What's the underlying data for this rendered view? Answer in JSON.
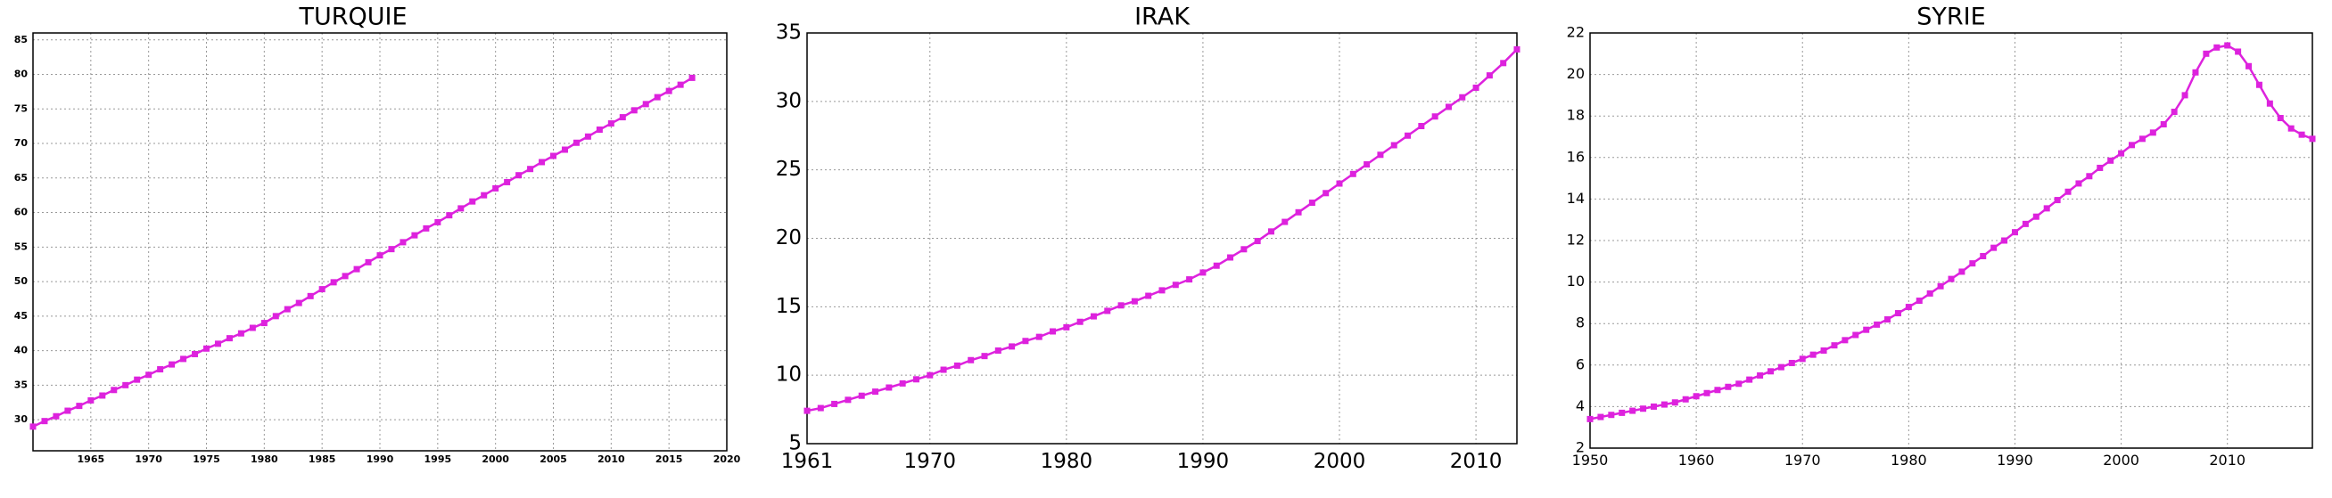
{
  "chart_data": [
    {
      "type": "line",
      "title": "TURQUIE",
      "x": [
        1960,
        1961,
        1962,
        1963,
        1964,
        1965,
        1966,
        1967,
        1968,
        1969,
        1970,
        1971,
        1972,
        1973,
        1974,
        1975,
        1976,
        1977,
        1978,
        1979,
        1980,
        1981,
        1982,
        1983,
        1984,
        1985,
        1986,
        1987,
        1988,
        1989,
        1990,
        1991,
        1992,
        1993,
        1994,
        1995,
        1996,
        1997,
        1998,
        1999,
        2000,
        2001,
        2002,
        2003,
        2004,
        2005,
        2006,
        2007,
        2008,
        2009,
        2010,
        2011,
        2012,
        2013,
        2014,
        2015,
        2016,
        2017
      ],
      "series": [
        {
          "color": "#dd22dd",
          "values": [
            29.0,
            29.8,
            30.5,
            31.3,
            32.0,
            32.8,
            33.5,
            34.3,
            35.0,
            35.8,
            36.5,
            37.3,
            38.0,
            38.8,
            39.5,
            40.3,
            41.0,
            41.8,
            42.5,
            43.3,
            44.0,
            45.0,
            46.0,
            46.9,
            47.9,
            48.9,
            49.9,
            50.8,
            51.8,
            52.8,
            53.8,
            54.7,
            55.7,
            56.7,
            57.7,
            58.6,
            59.6,
            60.6,
            61.6,
            62.5,
            63.5,
            64.4,
            65.4,
            66.3,
            67.3,
            68.2,
            69.1,
            70.1,
            71.0,
            72.0,
            72.9,
            73.8,
            74.8,
            75.7,
            76.7,
            77.6,
            78.5,
            79.5
          ]
        }
      ],
      "xlim": [
        1960,
        2020
      ],
      "xticks": [
        1965,
        1970,
        1975,
        1980,
        1985,
        1990,
        1995,
        2000,
        2005,
        2010,
        2015,
        2020
      ],
      "ylim": [
        25.5,
        86
      ],
      "yticks": [
        30,
        35,
        40,
        45,
        50,
        55,
        60,
        65,
        70,
        75,
        80,
        85
      ],
      "grid": true
    },
    {
      "type": "line",
      "title": "IRAK",
      "x": [
        1961,
        1962,
        1963,
        1964,
        1965,
        1966,
        1967,
        1968,
        1969,
        1970,
        1971,
        1972,
        1973,
        1974,
        1975,
        1976,
        1977,
        1978,
        1979,
        1980,
        1981,
        1982,
        1983,
        1984,
        1985,
        1986,
        1987,
        1988,
        1989,
        1990,
        1991,
        1992,
        1993,
        1994,
        1995,
        1996,
        1997,
        1998,
        1999,
        2000,
        2001,
        2002,
        2003,
        2004,
        2005,
        2006,
        2007,
        2008,
        2009,
        2010,
        2011,
        2012,
        2013
      ],
      "series": [
        {
          "color": "#dd22dd",
          "values": [
            7.4,
            7.6,
            7.9,
            8.2,
            8.5,
            8.8,
            9.1,
            9.4,
            9.7,
            10.0,
            10.4,
            10.7,
            11.1,
            11.4,
            11.8,
            12.1,
            12.5,
            12.8,
            13.2,
            13.5,
            13.9,
            14.3,
            14.7,
            15.1,
            15.4,
            15.8,
            16.2,
            16.6,
            17.0,
            17.5,
            18.0,
            18.6,
            19.2,
            19.8,
            20.5,
            21.2,
            21.9,
            22.6,
            23.3,
            24.0,
            24.7,
            25.4,
            26.1,
            26.8,
            27.5,
            28.2,
            28.9,
            29.6,
            30.3,
            31.0,
            31.9,
            32.8,
            33.8
          ]
        }
      ],
      "xlim": [
        1961,
        2013
      ],
      "xticks": [
        1961,
        1970,
        1980,
        1990,
        2000,
        2010
      ],
      "ylim": [
        5,
        35
      ],
      "yticks": [
        5,
        10,
        15,
        20,
        25,
        30,
        35
      ],
      "grid": true
    },
    {
      "type": "line",
      "title": "SYRIE",
      "x": [
        1950,
        1951,
        1952,
        1953,
        1954,
        1955,
        1956,
        1957,
        1958,
        1959,
        1960,
        1961,
        1962,
        1963,
        1964,
        1965,
        1966,
        1967,
        1968,
        1969,
        1970,
        1971,
        1972,
        1973,
        1974,
        1975,
        1976,
        1977,
        1978,
        1979,
        1980,
        1981,
        1982,
        1983,
        1984,
        1985,
        1986,
        1987,
        1988,
        1989,
        1990,
        1991,
        1992,
        1993,
        1994,
        1995,
        1996,
        1997,
        1998,
        1999,
        2000,
        2001,
        2002,
        2003,
        2004,
        2005,
        2006,
        2007,
        2008,
        2009,
        2010,
        2011,
        2012,
        2013,
        2014,
        2015,
        2016,
        2017,
        2018
      ],
      "series": [
        {
          "color": "#dd22dd",
          "values": [
            3.4,
            3.5,
            3.6,
            3.7,
            3.8,
            3.9,
            4.0,
            4.1,
            4.2,
            4.35,
            4.5,
            4.65,
            4.8,
            4.95,
            5.1,
            5.3,
            5.5,
            5.7,
            5.9,
            6.1,
            6.3,
            6.5,
            6.7,
            6.95,
            7.2,
            7.45,
            7.7,
            7.95,
            8.2,
            8.5,
            8.8,
            9.1,
            9.45,
            9.8,
            10.15,
            10.5,
            10.9,
            11.25,
            11.65,
            12.0,
            12.4,
            12.8,
            13.15,
            13.55,
            13.95,
            14.35,
            14.75,
            15.1,
            15.5,
            15.85,
            16.2,
            16.6,
            16.9,
            17.2,
            17.6,
            18.2,
            19.0,
            20.1,
            21.0,
            21.3,
            21.4,
            21.1,
            20.4,
            19.5,
            18.6,
            17.9,
            17.4,
            17.1,
            16.9
          ]
        }
      ],
      "xlim": [
        1950,
        2018
      ],
      "xticks": [
        1950,
        1960,
        1970,
        1980,
        1990,
        2000,
        2010
      ],
      "ylim": [
        2,
        22
      ],
      "yticks": [
        2,
        4,
        6,
        8,
        10,
        12,
        14,
        16,
        18,
        20,
        22
      ],
      "grid": true
    }
  ]
}
